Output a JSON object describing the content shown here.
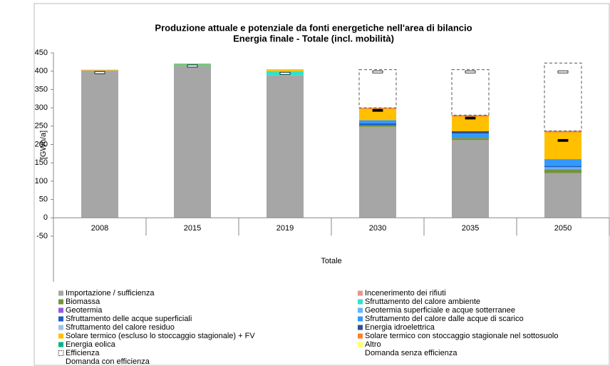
{
  "chart_data": {
    "type": "stacked_bar",
    "title": [
      "Produzione attuale e potenziale da fonti energetiche nell'area di bilancio",
      "Energia finale - Totale (incl. mobilità)"
    ],
    "ylabel": "[GWh/a]",
    "xlabel": "Totale",
    "categories": [
      "2008",
      "2015",
      "2019",
      "2030",
      "2035",
      "2050"
    ],
    "ylim": [
      -50,
      450
    ],
    "yticks": [
      -50,
      0,
      50,
      100,
      150,
      200,
      250,
      300,
      350,
      400,
      450
    ],
    "grid": false,
    "series": [
      {
        "name": "Importazione / sufficienza",
        "color": "#a6a6a6",
        "values": [
          402,
          414,
          388,
          248,
          212,
          122
        ]
      },
      {
        "name": "Incenerimento dei rifiuti",
        "color": "#e6968c",
        "values": [
          0,
          0,
          0,
          0,
          0,
          0
        ]
      },
      {
        "name": "Biomassa",
        "color": "#76923c",
        "values": [
          0,
          0,
          0,
          4,
          6,
          10
        ]
      },
      {
        "name": "Sfruttamento del calore ambiente",
        "color": "#33e0c8",
        "values": [
          0,
          3,
          12,
          0,
          0,
          0
        ]
      },
      {
        "name": "Geotermia",
        "color": "#8e5ee0",
        "values": [
          0,
          0,
          0,
          0,
          0,
          0
        ]
      },
      {
        "name": "Geotermia superficiale e acque sotterranee",
        "color": "#66b3ff",
        "values": [
          0,
          0,
          0,
          0,
          0,
          6
        ]
      },
      {
        "name": "Sfruttamento delle acque superficiali",
        "color": "#1f5fbf",
        "values": [
          0,
          0,
          0,
          6,
          0,
          4
        ]
      },
      {
        "name": "Sfruttamento del calore dalle acque di scarico",
        "color": "#3399ff",
        "values": [
          0,
          0,
          0,
          8,
          12,
          18
        ]
      },
      {
        "name": "Sfruttamento del calore residuo",
        "color": "#9dc3e6",
        "values": [
          0,
          0,
          0,
          0,
          0,
          0
        ]
      },
      {
        "name": "Energia idroelettrica",
        "color": "#2f4f8f",
        "values": [
          0,
          0,
          0,
          0,
          6,
          0
        ]
      },
      {
        "name": "Solare termico (escluso lo stoccaggio stagionale) + FV",
        "color": "#ffc000",
        "values": [
          2,
          1,
          5,
          31,
          40,
          73
        ]
      },
      {
        "name": "Solare termico con stoccaggio stagionale nel sottosuolo",
        "color": "#ff7f27",
        "values": [
          0,
          0,
          0,
          3,
          4,
          4
        ]
      },
      {
        "name": "Energia eolica",
        "color": "#00b386",
        "values": [
          0,
          2,
          0,
          0,
          0,
          0
        ]
      },
      {
        "name": "Altro",
        "color": "#ffff66",
        "values": [
          0,
          0,
          0,
          0,
          0,
          0
        ]
      },
      {
        "name": "Efficienza",
        "color": "#ffffff",
        "border": "dashed",
        "values": [
          0,
          0,
          0,
          104,
          124,
          185
        ]
      }
    ],
    "markers": [
      {
        "name": "Domanda senza efficienza",
        "color": "#ffffff",
        "values": [
          396,
          414,
          394,
          398,
          398,
          398
        ]
      },
      {
        "name": "Domanda con efficienza",
        "color": "#000000",
        "values": [
          null,
          null,
          null,
          293,
          272,
          211
        ]
      }
    ]
  }
}
